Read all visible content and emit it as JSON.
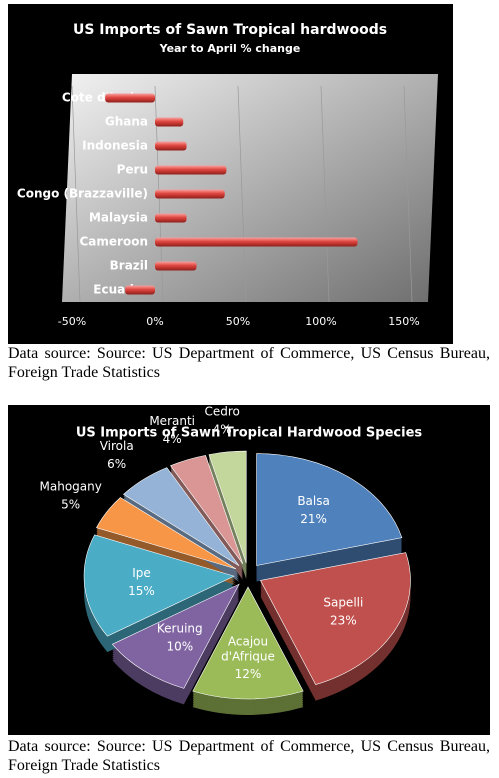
{
  "chart_data": [
    {
      "type": "hbar",
      "title": "US Imports of Sawn Tropical hardwoods",
      "subtitle": "Year to April % change",
      "categories": [
        "Cote d'Ivoire",
        "Ghana",
        "Indonesia",
        "Peru",
        "Congo (Brazzaville)",
        "Malaysia",
        "Cameroon",
        "Brazil",
        "Ecuador"
      ],
      "values": [
        -30,
        17,
        19,
        43,
        42,
        19,
        122,
        25,
        -18
      ],
      "color": "#e0453f",
      "xlim": [
        -50,
        150
      ],
      "xticks": [
        {
          "value": -50,
          "label": "-50%"
        },
        {
          "value": 0,
          "label": "0%"
        },
        {
          "value": 50,
          "label": "50%"
        },
        {
          "value": 100,
          "label": "100%"
        },
        {
          "value": 150,
          "label": "150%"
        }
      ],
      "grid": true
    },
    {
      "type": "pie",
      "title": "US Imports of Sawn Tropical Hardwood Species",
      "categories": [
        "Balsa",
        "Sapelli",
        "Acajou d'Afrique",
        "Keruing",
        "Ipe",
        "Mahogany",
        "Virola",
        "Meranti",
        "Cedro"
      ],
      "values": [
        21,
        23,
        12,
        10,
        15,
        5,
        6,
        4,
        4
      ],
      "value_labels": [
        "21%",
        "23%",
        "12%",
        "10%",
        "15%",
        "5%",
        "6%",
        "4%",
        "4%"
      ],
      "colors": [
        "#4f81bd",
        "#c0504d",
        "#9bbb59",
        "#8064a2",
        "#4bacc6",
        "#f79646",
        "#95b3d7",
        "#d99694",
        "#c3d69b"
      ]
    }
  ],
  "captions": [
    "Data source: Source: US Department of Commerce, US Census Bureau, Foreign Trade Statistics",
    "Data source: Source: US Department of Commerce, US Census Bureau, Foreign Trade Statistics"
  ]
}
